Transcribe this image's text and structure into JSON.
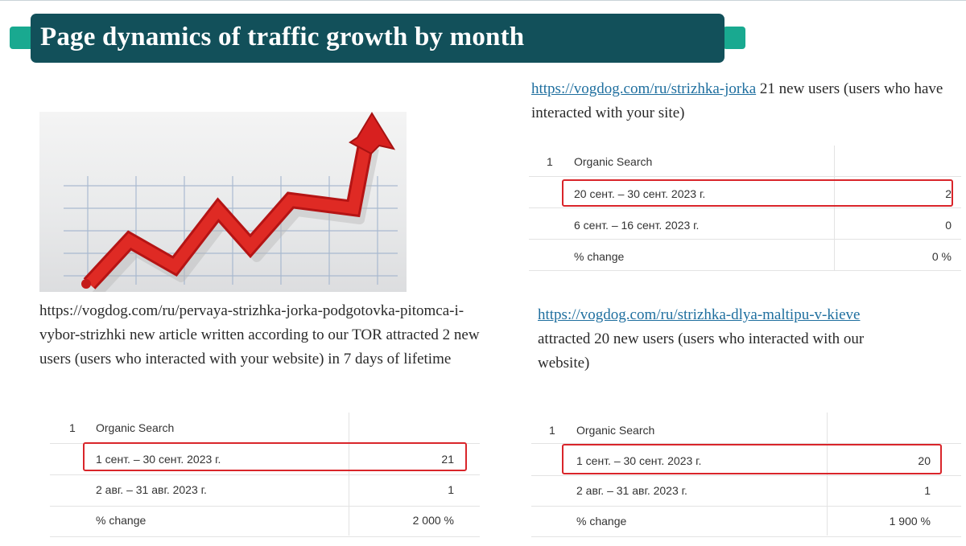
{
  "title": "Page dynamics of traffic growth by month",
  "blocks": {
    "block1": {
      "link": "https://vogdog.com/ru/pervaya-strizhka-jorka-podgotovka-pitomca-i-vybor-strizhki",
      "text": " new article written according to our TOR attracted 2 new users (users who interacted with your website) in 7 days of lifetime"
    },
    "block2": {
      "link": "https://vogdog.com/ru/strizhka-jorka",
      "text": " 21 new users (users who have interacted with your site)"
    },
    "block3": {
      "link": "https://vogdog.com/ru/strizhka-dlya-maltipu-v-kieve",
      "text": "attracted 20 new users (users who interacted with our website)"
    }
  },
  "tables": {
    "table1": {
      "row_number": "1",
      "channel": "Organic Search",
      "period_current": "1 сент. – 30 сент. 2023 г.",
      "value_current": "21",
      "period_previous": "2 авг. – 31 авг. 2023 г.",
      "value_previous": "1",
      "change_label": "% change",
      "change_value": "2 000 %"
    },
    "table2": {
      "row_number": "1",
      "channel": "Organic Search",
      "period_current": "20 сент. – 30 сент. 2023 г.",
      "value_current": "2",
      "period_previous": "6 сент. – 16 сент. 2023 г.",
      "value_previous": "0",
      "change_label": "% change",
      "change_value": "0 %"
    },
    "table3": {
      "row_number": "1",
      "channel": "Organic Search",
      "period_current": "1 сент. – 30 сент. 2023 г.",
      "value_current": "20",
      "period_previous": "2 авг. – 31 авг. 2023 г.",
      "value_previous": "1",
      "change_label": "% change",
      "change_value": "1 900 %"
    }
  },
  "colors": {
    "banner": "#12505a",
    "accent": "#19a990",
    "highlight": "#d9252a",
    "link": "#1f6f9f",
    "arrow": "#d8201f"
  },
  "image": {
    "icon": "growth-arrow-chart-image"
  }
}
